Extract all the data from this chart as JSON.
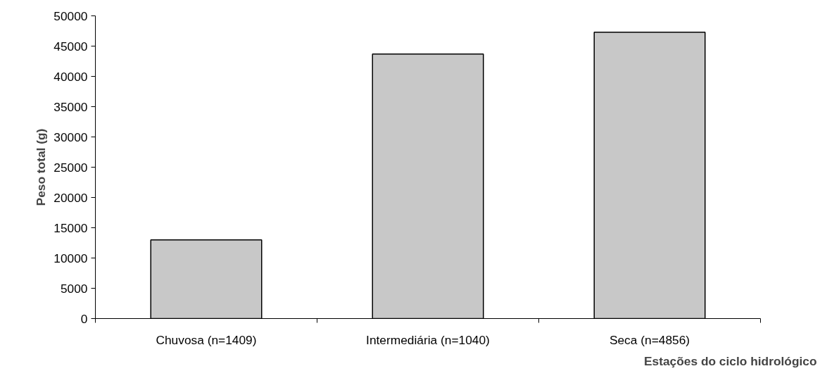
{
  "chart_data": {
    "type": "bar",
    "categories": [
      "Chuvosa (n=1409)",
      "Intermediária (n=1040)",
      "Seca (n=4856)"
    ],
    "values": [
      13000,
      43700,
      47300
    ],
    "color": "#c8c8c8",
    "ylim": [
      0,
      50000
    ],
    "yticks": [
      0,
      5000,
      10000,
      15000,
      20000,
      25000,
      30000,
      35000,
      40000,
      45000,
      50000
    ],
    "xlabel": "Estações do ciclo hidrológico",
    "ylabel": "Peso total (g)",
    "grid": false,
    "legend": false
  }
}
